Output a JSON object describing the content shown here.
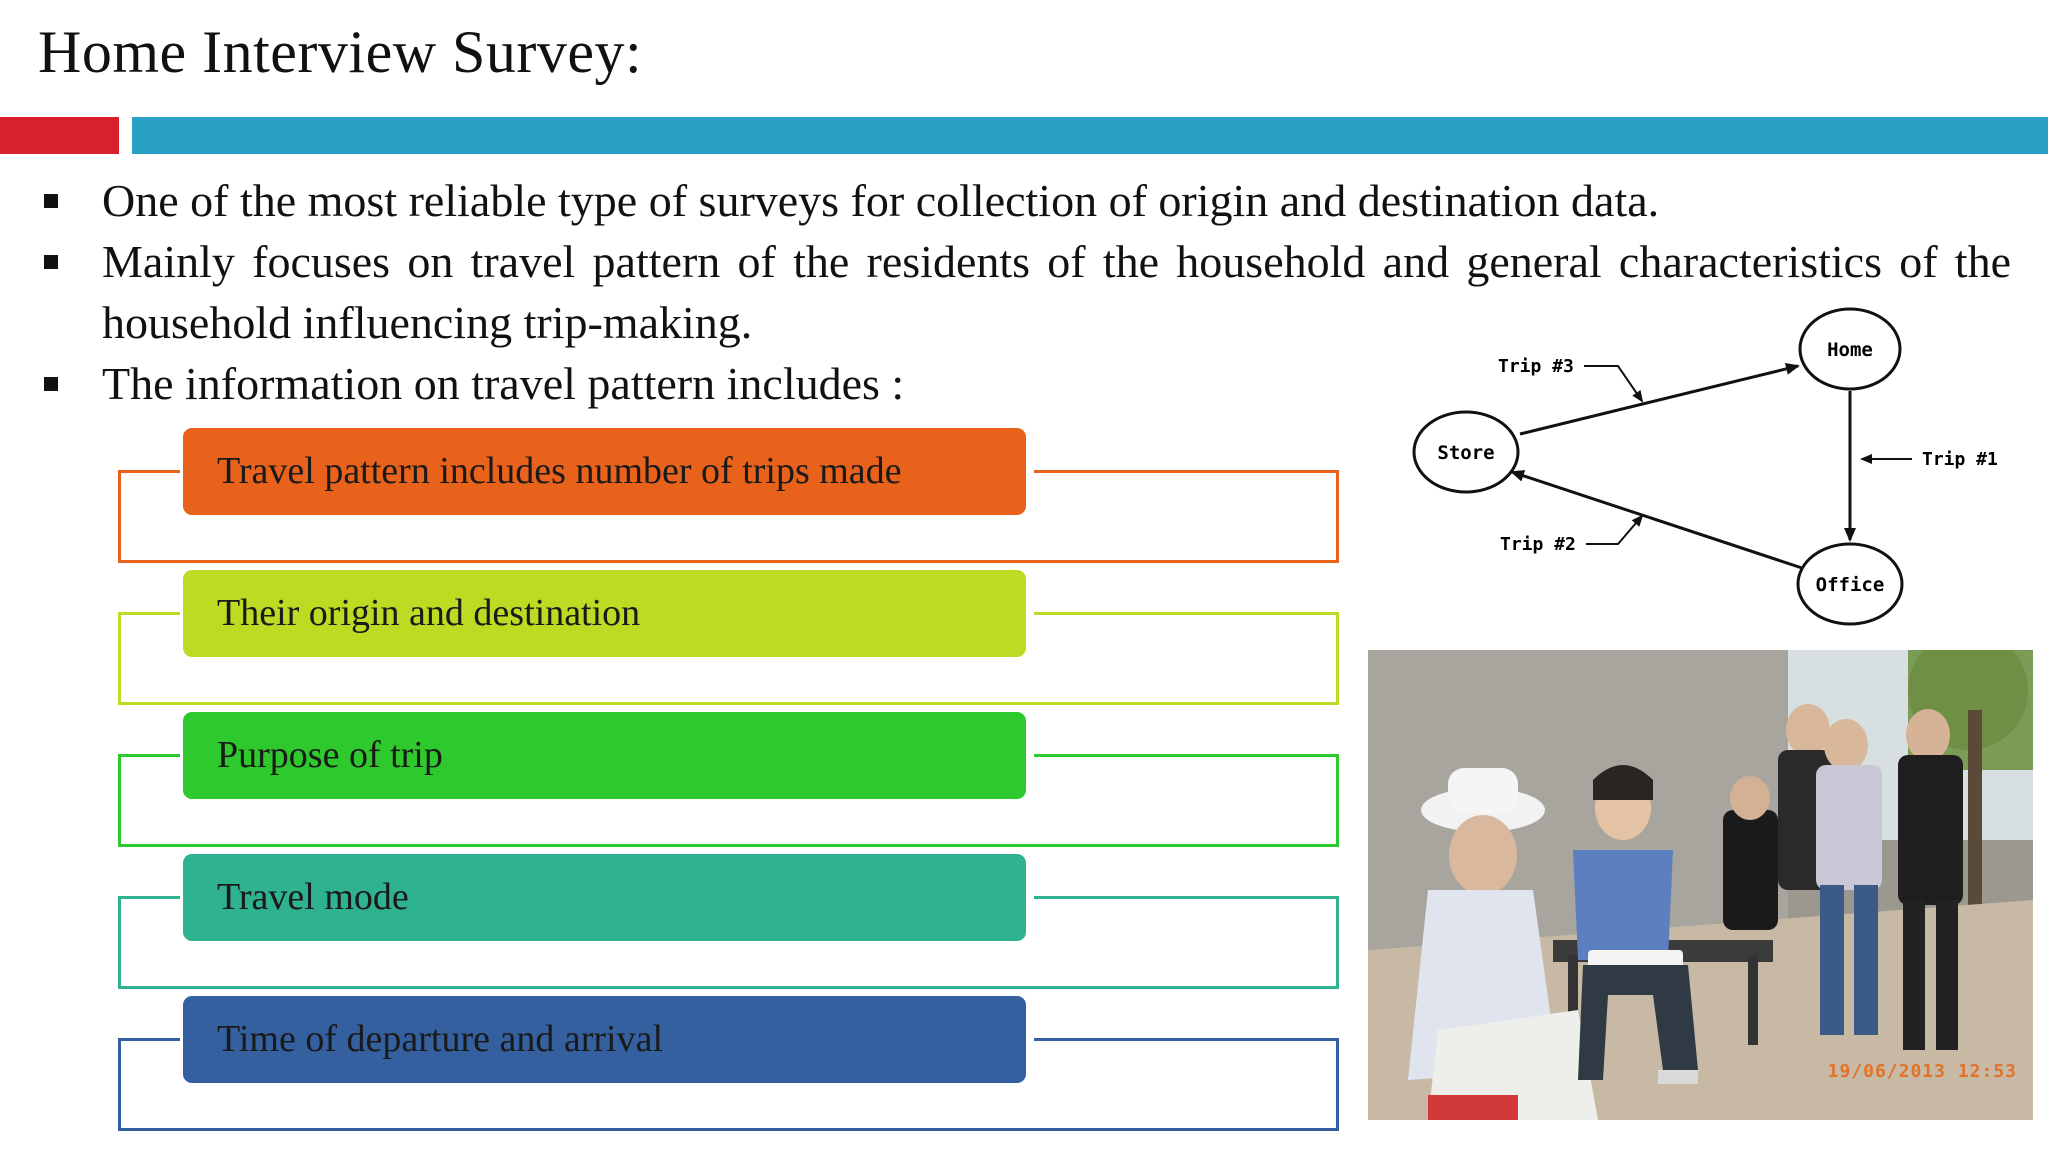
{
  "slide": {
    "title": "Home Interview Survey:",
    "colors": {
      "red_bar": "#d9202e",
      "blue_bar": "#2aa0c4"
    }
  },
  "bullets": [
    {
      "text": "One of the most reliable type of surveys for collection of origin and destination data."
    },
    {
      "text": "Mainly focuses on travel pattern of the residents of the household and general characteristics of the household influencing trip-making."
    },
    {
      "text": "The information on travel pattern includes :"
    }
  ],
  "items": [
    {
      "label": "Travel pattern includes number of trips made",
      "color": "#e8621c"
    },
    {
      "label": "Their origin and destination",
      "color": "#bfda23"
    },
    {
      "label": "Purpose of trip",
      "color": "#2ec92c"
    },
    {
      "label": "Travel mode",
      "color": "#2fb28f"
    },
    {
      "label": "Time of departure and arrival",
      "color": "#35609f"
    }
  ],
  "diagram": {
    "nodes": {
      "home": "Home",
      "store": "Store",
      "office": "Office"
    },
    "trips": {
      "trip1": "Trip #1",
      "trip2": "Trip #2",
      "trip3": "Trip #3"
    }
  },
  "photo": {
    "timestamp": "19/06/2013 12:53"
  }
}
